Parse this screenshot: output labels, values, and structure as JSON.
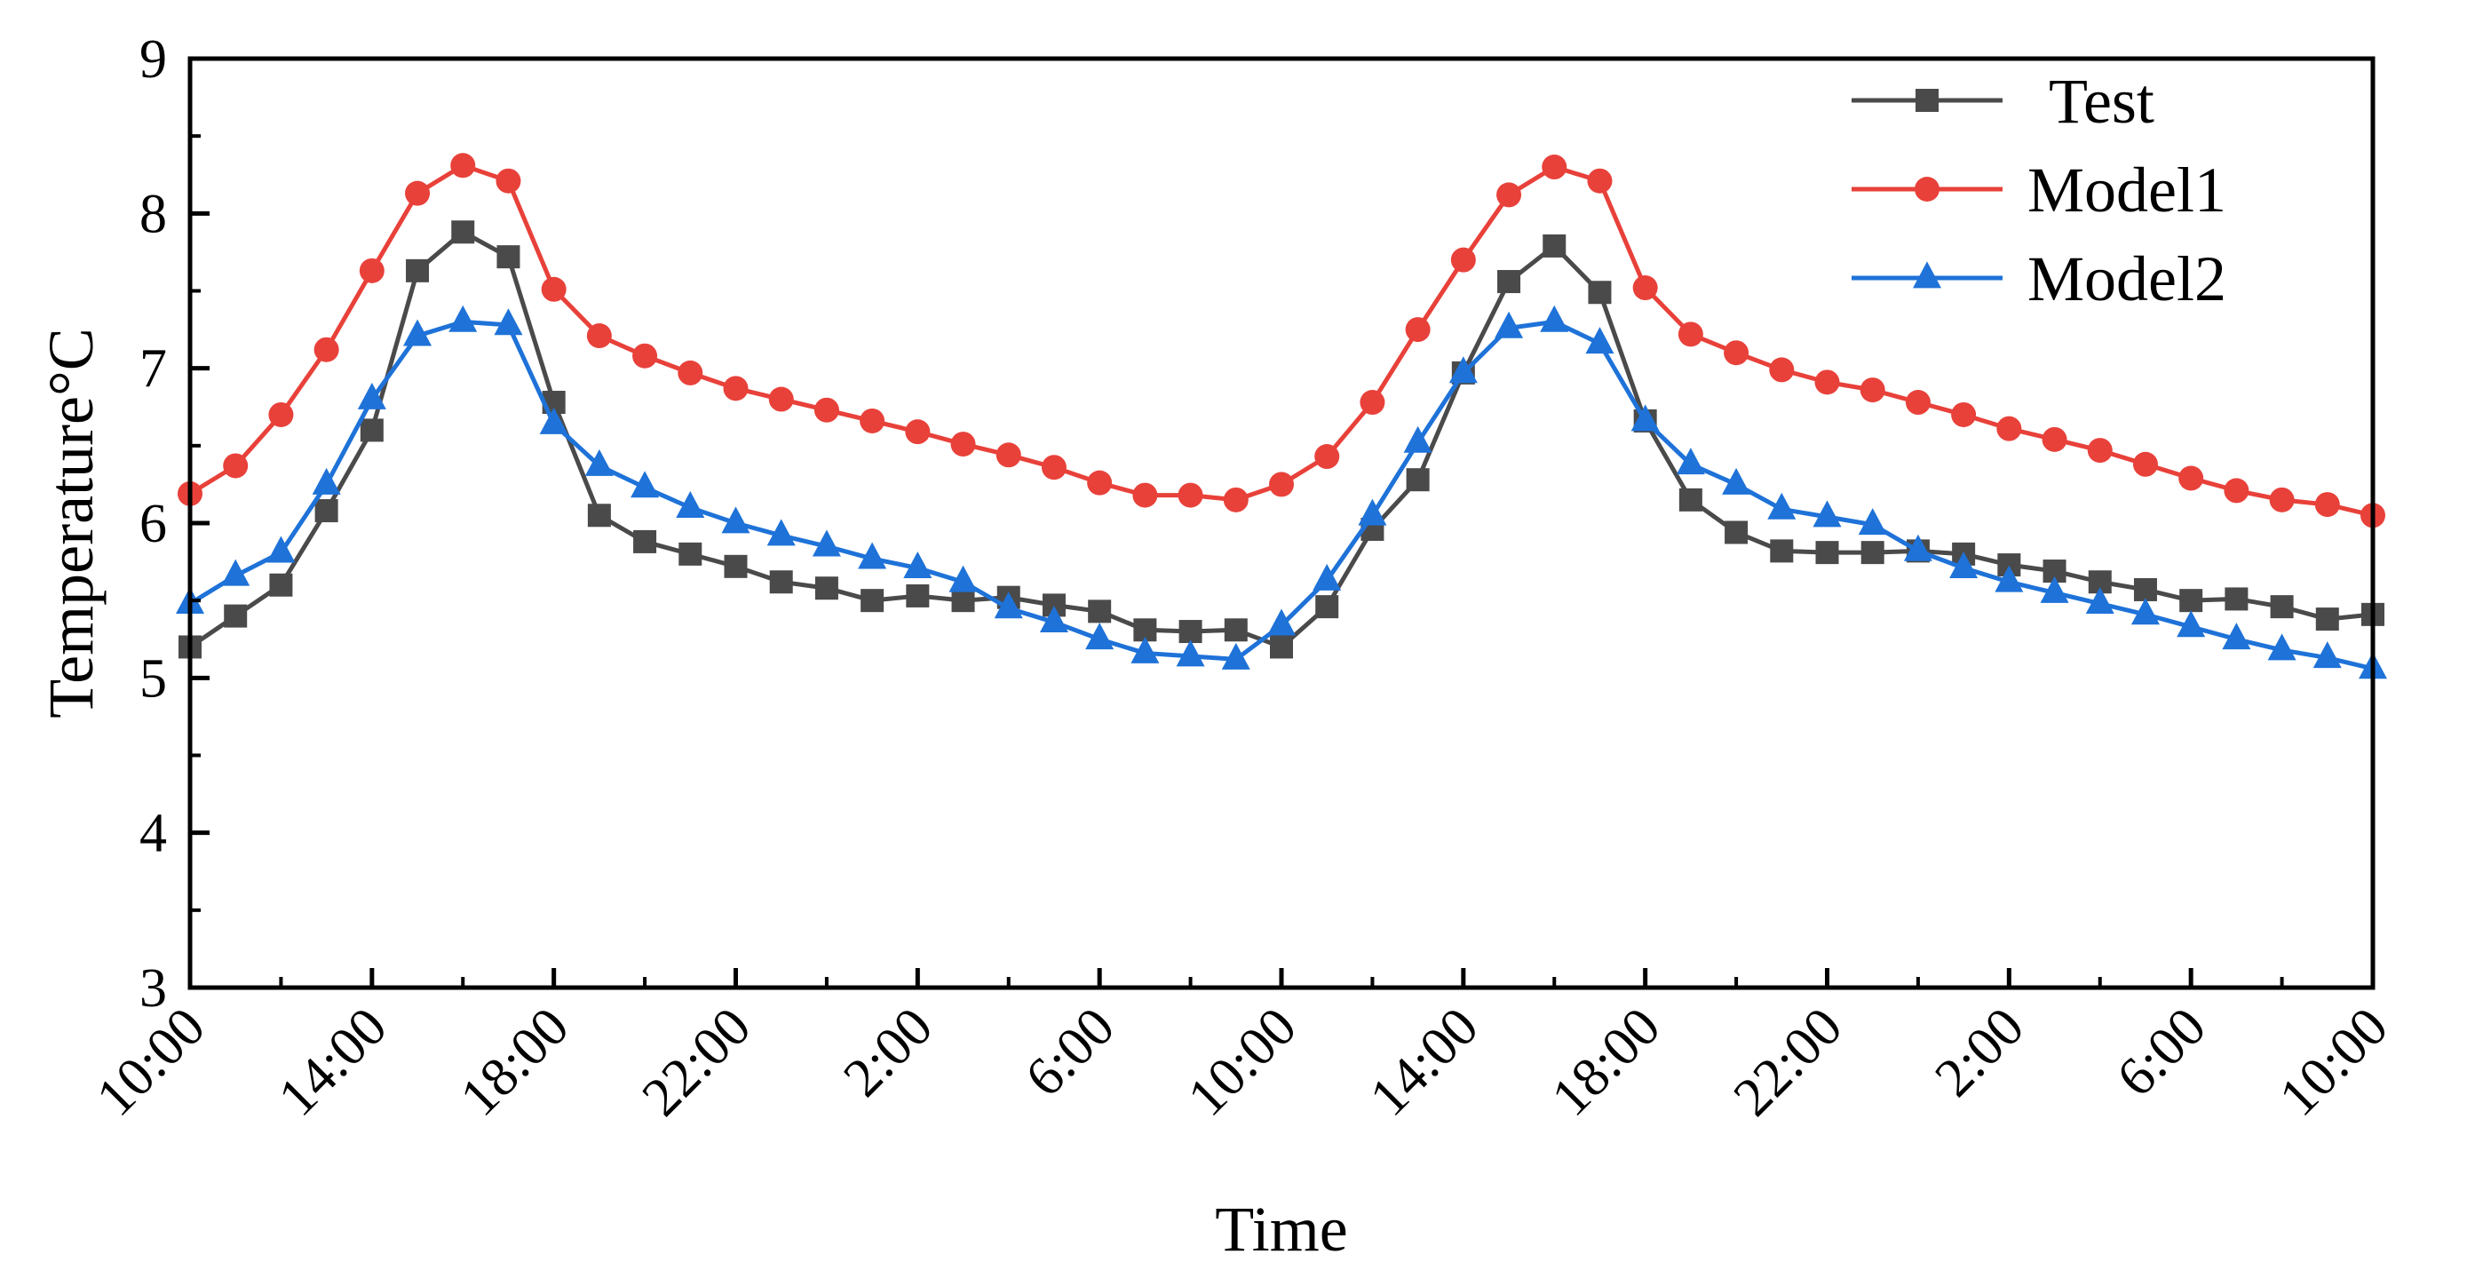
{
  "chart_data": {
    "type": "line",
    "xlabel": "Time",
    "ylabel": "Temperature°C",
    "ylim": [
      3,
      9
    ],
    "yticks": [
      "3",
      "4",
      "5",
      "6",
      "7",
      "8",
      "9"
    ],
    "xlim": [
      0,
      48
    ],
    "xticks": [
      {
        "x": 0,
        "label": "10:00"
      },
      {
        "x": 4,
        "label": "14:00"
      },
      {
        "x": 8,
        "label": "18:00"
      },
      {
        "x": 12,
        "label": "22:00"
      },
      {
        "x": 16,
        "label": "2:00"
      },
      {
        "x": 20,
        "label": "6:00"
      },
      {
        "x": 24,
        "label": "10:00"
      },
      {
        "x": 28,
        "label": "14:00"
      },
      {
        "x": 32,
        "label": "18:00"
      },
      {
        "x": 36,
        "label": "22:00"
      },
      {
        "x": 40,
        "label": "2:00"
      },
      {
        "x": 44,
        "label": "6:00"
      },
      {
        "x": 48,
        "label": "10:00"
      }
    ],
    "grid": false,
    "legend_position": "top-right",
    "series": [
      {
        "name": "Test",
        "color": "#4a4a4a",
        "marker": "square",
        "values": [
          5.2,
          5.4,
          5.6,
          6.08,
          6.6,
          7.63,
          7.88,
          7.72,
          6.78,
          6.05,
          5.88,
          5.8,
          5.72,
          5.62,
          5.58,
          5.5,
          5.53,
          5.5,
          5.52,
          5.47,
          5.43,
          5.31,
          5.3,
          5.31,
          5.2,
          5.46,
          5.96,
          6.28,
          6.97,
          7.56,
          7.79,
          7.49,
          6.66,
          6.15,
          5.94,
          5.82,
          5.81,
          5.81,
          5.82,
          5.8,
          5.73,
          5.69,
          5.62,
          5.57,
          5.5,
          5.51,
          5.46,
          5.38,
          5.41
        ]
      },
      {
        "name": "Model1",
        "color": "#e8413a",
        "marker": "circle",
        "values": [
          6.19,
          6.37,
          6.7,
          7.12,
          7.63,
          8.13,
          8.31,
          8.21,
          7.51,
          7.21,
          7.08,
          6.97,
          6.87,
          6.8,
          6.73,
          6.66,
          6.59,
          6.51,
          6.44,
          6.36,
          6.26,
          6.18,
          6.18,
          6.15,
          6.25,
          6.43,
          6.78,
          7.25,
          7.7,
          8.12,
          8.3,
          8.21,
          7.52,
          7.22,
          7.1,
          6.99,
          6.91,
          6.86,
          6.78,
          6.7,
          6.61,
          6.54,
          6.47,
          6.38,
          6.29,
          6.21,
          6.15,
          6.12,
          6.05
        ]
      },
      {
        "name": "Model2",
        "color": "#1e72d8",
        "marker": "triangle",
        "values": [
          5.48,
          5.66,
          5.81,
          6.25,
          6.8,
          7.21,
          7.3,
          7.28,
          6.64,
          6.37,
          6.23,
          6.1,
          6.0,
          5.92,
          5.85,
          5.77,
          5.71,
          5.62,
          5.45,
          5.36,
          5.25,
          5.16,
          5.14,
          5.12,
          5.34,
          5.63,
          6.05,
          6.52,
          6.97,
          7.26,
          7.3,
          7.16,
          6.66,
          6.38,
          6.25,
          6.09,
          6.04,
          5.99,
          5.82,
          5.71,
          5.62,
          5.55,
          5.48,
          5.41,
          5.33,
          5.25,
          5.18,
          5.13,
          5.06
        ]
      }
    ]
  }
}
